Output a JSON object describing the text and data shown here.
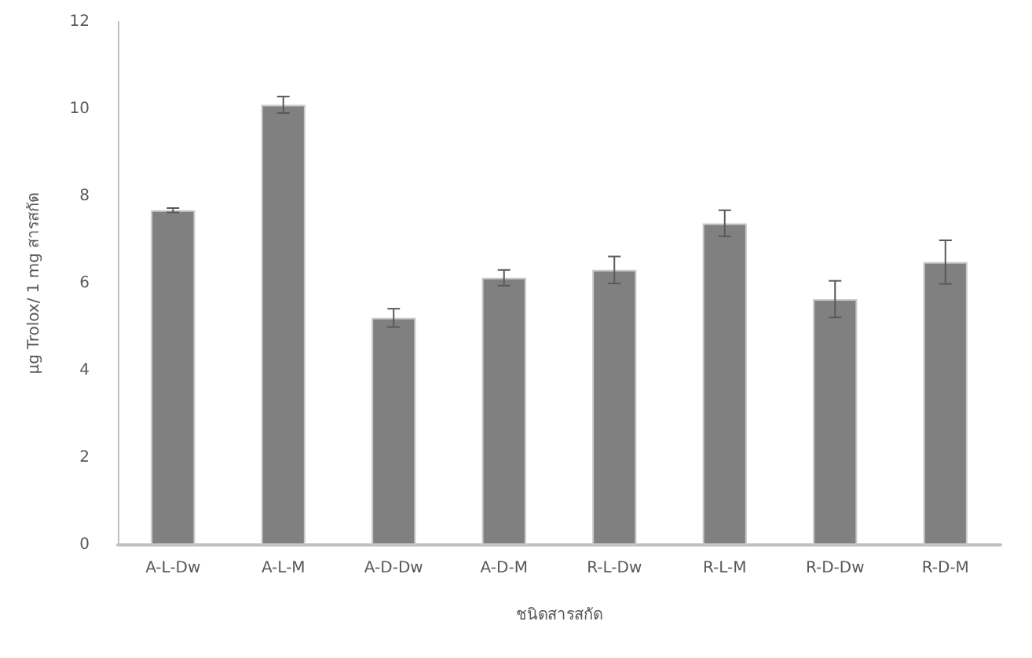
{
  "chart_data": {
    "type": "bar",
    "xlabel": "ชนิดสารสกัด",
    "ylabel": "μg Trolox/ 1 mg สารสกัด",
    "categories": [
      "A-L-Dw",
      "A-L-M",
      "A-D-Dw",
      "A-D-M",
      "R-L-Dw",
      "R-L-M",
      "R-D-Dw",
      "R-D-M"
    ],
    "values": [
      7.68,
      10.1,
      5.21,
      6.13,
      6.31,
      7.38,
      5.64,
      6.49
    ],
    "errors": [
      0.05,
      0.19,
      0.21,
      0.18,
      0.31,
      0.3,
      0.42,
      0.5
    ],
    "color": "#808080",
    "ylim": [
      0,
      12
    ],
    "yticks": [
      0,
      2,
      4,
      6,
      8,
      10,
      12
    ],
    "grid": false
  }
}
